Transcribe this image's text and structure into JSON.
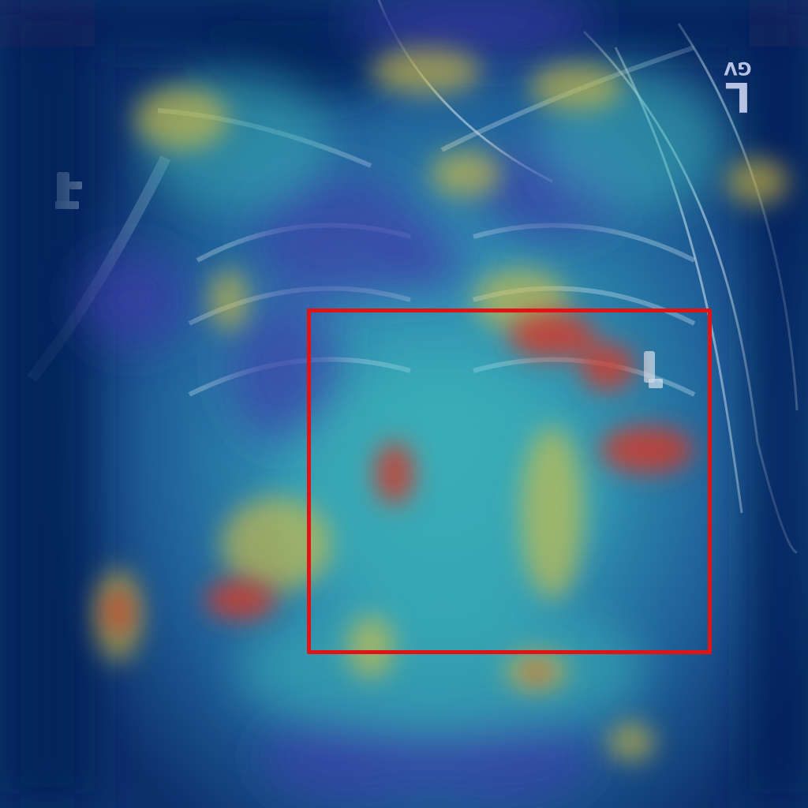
{
  "image": {
    "kind": "chest-xray-saliency-overlay",
    "colormap": [
      "#08306b",
      "#3b3ba8",
      "#2fa3b7",
      "#e0c23a",
      "#d23a2a"
    ]
  },
  "annotations": {
    "side_marker": {
      "initials": "GV",
      "side_letter": "L"
    },
    "roi_box": {
      "color": "#e01414"
    }
  }
}
